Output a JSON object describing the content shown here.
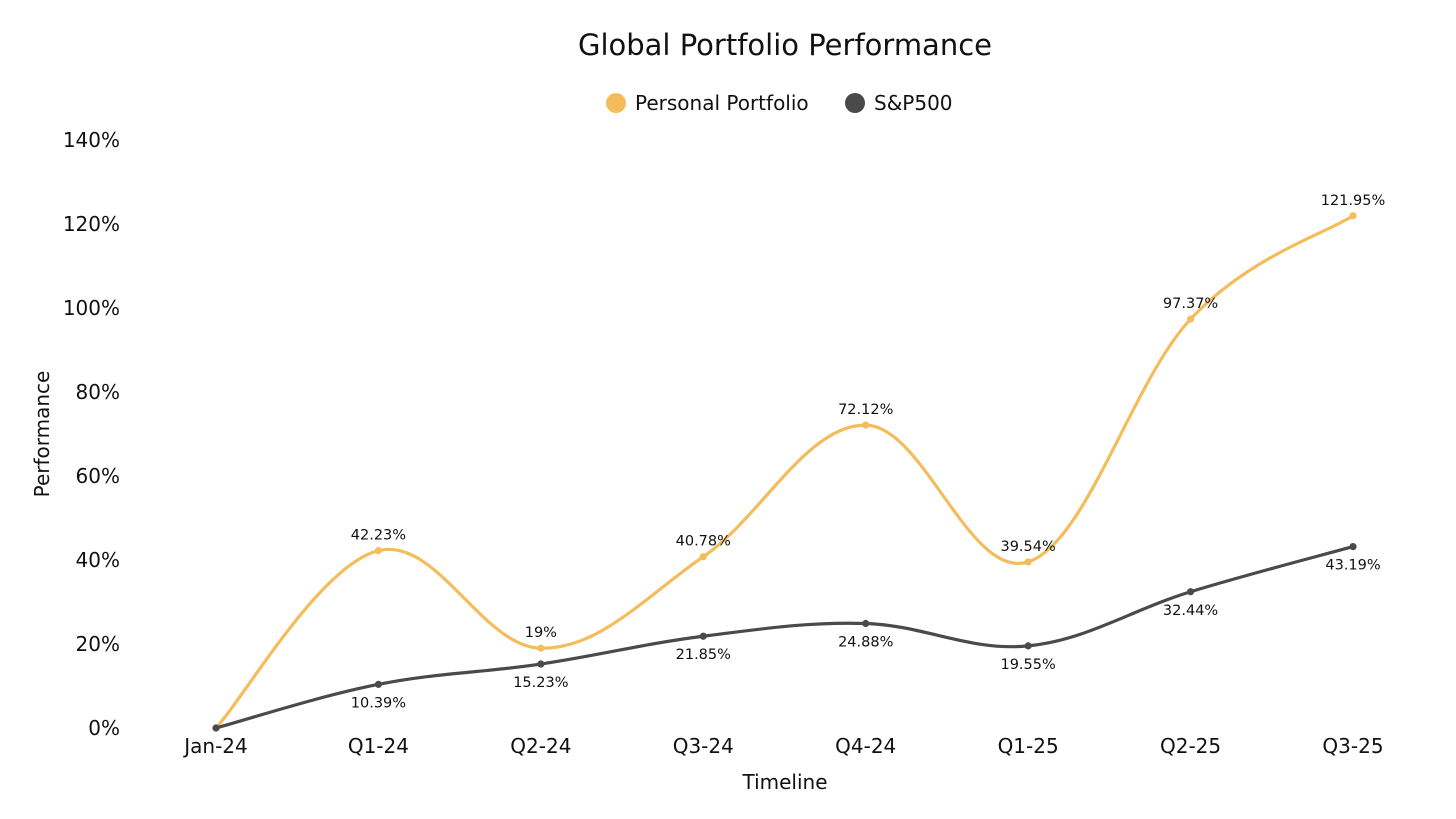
{
  "chart_data": {
    "type": "line",
    "title": "Global Portfolio Performance",
    "xlabel": "Timeline",
    "ylabel": "Performance",
    "categories": [
      "Jan-24",
      "Q1-24",
      "Q2-24",
      "Q3-24",
      "Q4-24",
      "Q1-25",
      "Q2-25",
      "Q3-25"
    ],
    "ylim": [
      0,
      140
    ],
    "yticks": [
      0,
      20,
      40,
      60,
      80,
      100,
      120,
      140
    ],
    "ytick_labels": [
      "0%",
      "20%",
      "40%",
      "60%",
      "80%",
      "100%",
      "120%",
      "140%"
    ],
    "grid": false,
    "legend_position": "top-center",
    "series": [
      {
        "name": "Personal Portfolio",
        "color": "#F3BD5C",
        "values": [
          0,
          42.23,
          19,
          40.78,
          72.12,
          39.54,
          97.37,
          121.95
        ],
        "labels": [
          "",
          "42.23%",
          "19%",
          "40.78%",
          "72.12%",
          "39.54%",
          "97.37%",
          "121.95%"
        ],
        "label_position": "above"
      },
      {
        "name": "S&P500",
        "color": "#4A4A4A",
        "values": [
          0,
          10.39,
          15.23,
          21.85,
          24.88,
          19.55,
          32.44,
          43.19
        ],
        "labels": [
          "",
          "10.39%",
          "15.23%",
          "21.85%",
          "24.88%",
          "19.55%",
          "32.44%",
          "43.19%"
        ],
        "label_position": "below"
      }
    ]
  }
}
